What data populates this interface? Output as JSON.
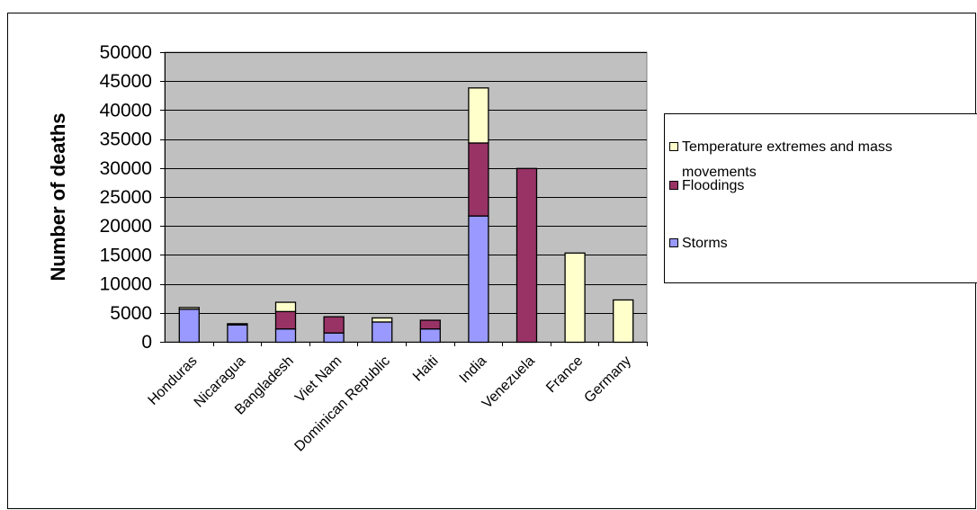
{
  "chart_data": {
    "type": "bar",
    "stacked": true,
    "title": "",
    "xlabel": "",
    "ylabel": "Number of deaths",
    "ylim": [
      0,
      50000
    ],
    "yticks": [
      0,
      5000,
      10000,
      15000,
      20000,
      25000,
      30000,
      35000,
      40000,
      45000,
      50000
    ],
    "grid": true,
    "legend_position": "right",
    "categories": [
      "Honduras",
      "Nicaragua",
      "Bangladesh",
      "Viet Nam",
      "Dominican Republic",
      "Haiti",
      "India",
      "Venezuela",
      "France",
      "Germany"
    ],
    "series": [
      {
        "name": "Storms",
        "color": "#9999ff",
        "values": [
          5700,
          3000,
          2300,
          1600,
          3500,
          2300,
          21800,
          0,
          0,
          0
        ]
      },
      {
        "name": "Floodings",
        "color": "#993366",
        "values": [
          0,
          0,
          3000,
          2800,
          0,
          1500,
          12600,
          30000,
          0,
          0
        ]
      },
      {
        "name": "Temperature extremes and mass movements",
        "color": "#ffffcc",
        "values": [
          300,
          200,
          1600,
          0,
          700,
          0,
          9500,
          0,
          15400,
          7300
        ]
      }
    ],
    "legend": {
      "items": [
        {
          "line1": "Temperature extremes and mass",
          "line2": "movements",
          "color": "#ffffcc"
        },
        {
          "line1": "Floodings",
          "line2": "",
          "color": "#993366"
        },
        {
          "line1": "Storms",
          "line2": "",
          "color": "#9999ff"
        }
      ]
    },
    "plot_background": "#c0c0c0"
  }
}
